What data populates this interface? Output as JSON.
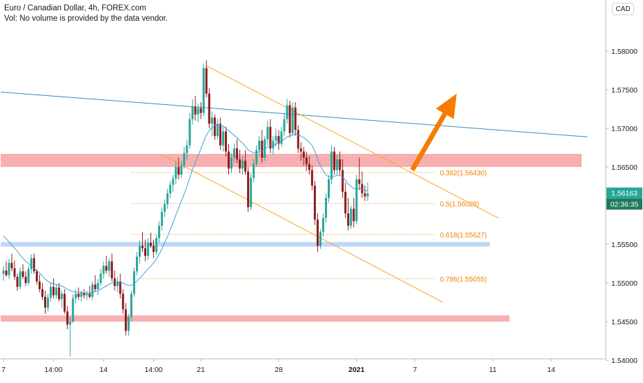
{
  "header": {
    "title": "Euro / Canadian Dollar, 4h, FOREX.com",
    "volume_note": "Vol: No volume is provided by the data vendor."
  },
  "currency_label": "CAD",
  "colors": {
    "up": "#26a69a",
    "down": "#8b1a1a",
    "ma": "#3b9fd8",
    "trendline": "#2f8bc0",
    "channel": "#f5a623",
    "fib": "#f57c00",
    "arrow": "#f57c00",
    "resistance_zone": "#f7a6a9",
    "support_zone": "#b8d4f5",
    "price_badge": "#26a69a",
    "countdown_badge": "#1e7b5a"
  },
  "chart_data": {
    "type": "candlestick",
    "symbol": "EURCAD",
    "timeframe": "4h",
    "ylim": [
      1.5395,
      1.5845
    ],
    "y_ticks": [
      "1.58000",
      "1.57500",
      "1.57000",
      "1.56500",
      "1.56000",
      "1.55500",
      "1.55000",
      "1.54500",
      "1.54000"
    ],
    "x_ticks": [
      {
        "label": "7",
        "bar": 0
      },
      {
        "label": "14:00",
        "bar": 18
      },
      {
        "label": "14",
        "bar": 36
      },
      {
        "label": "14:00",
        "bar": 54
      },
      {
        "label": "21",
        "bar": 71
      },
      {
        "label": "28",
        "bar": 99
      },
      {
        "label": "2021",
        "bar": 127
      },
      {
        "label": "7",
        "bar": 148
      },
      {
        "label": "11",
        "bar": 176
      },
      {
        "label": "14",
        "bar": 197
      }
    ],
    "current_price": "1.56163",
    "countdown": "02:36:35",
    "candles": [
      [
        1.5512,
        1.5522,
        1.5503,
        1.5516
      ],
      [
        1.5516,
        1.5528,
        1.5508,
        1.551
      ],
      [
        1.551,
        1.5531,
        1.5505,
        1.5526
      ],
      [
        1.5526,
        1.5538,
        1.5515,
        1.5519
      ],
      [
        1.5519,
        1.5529,
        1.5504,
        1.5508
      ],
      [
        1.5508,
        1.5512,
        1.549,
        1.5495
      ],
      [
        1.5495,
        1.552,
        1.5492,
        1.5515
      ],
      [
        1.5515,
        1.5524,
        1.5505,
        1.5508
      ],
      [
        1.5508,
        1.5515,
        1.5496,
        1.55
      ],
      [
        1.55,
        1.5522,
        1.5497,
        1.5518
      ],
      [
        1.5518,
        1.5537,
        1.5512,
        1.5532
      ],
      [
        1.5532,
        1.5538,
        1.5512,
        1.5515
      ],
      [
        1.5515,
        1.5518,
        1.5498,
        1.5502
      ],
      [
        1.5502,
        1.5511,
        1.5488,
        1.5492
      ],
      [
        1.5492,
        1.55,
        1.5478,
        1.5482
      ],
      [
        1.5482,
        1.549,
        1.546,
        1.5468
      ],
      [
        1.5468,
        1.5486,
        1.5463,
        1.5481
      ],
      [
        1.5481,
        1.55,
        1.5476,
        1.5495
      ],
      [
        1.5495,
        1.5506,
        1.548,
        1.5484
      ],
      [
        1.5484,
        1.5498,
        1.548,
        1.5494
      ],
      [
        1.5494,
        1.55,
        1.5476,
        1.5479
      ],
      [
        1.5479,
        1.549,
        1.5468,
        1.5486
      ],
      [
        1.5486,
        1.5492,
        1.546,
        1.5463
      ],
      [
        1.5463,
        1.547,
        1.544,
        1.5446
      ],
      [
        1.5446,
        1.5456,
        1.5405,
        1.545
      ],
      [
        1.545,
        1.5485,
        1.5448,
        1.548
      ],
      [
        1.548,
        1.5492,
        1.5474,
        1.5486
      ],
      [
        1.5486,
        1.5494,
        1.5478,
        1.5482
      ],
      [
        1.5482,
        1.549,
        1.5476,
        1.5487
      ],
      [
        1.5487,
        1.5492,
        1.548,
        1.5484
      ],
      [
        1.5484,
        1.549,
        1.5478,
        1.5486
      ],
      [
        1.5486,
        1.5496,
        1.548,
        1.5482
      ],
      [
        1.5482,
        1.5502,
        1.5478,
        1.5498
      ],
      [
        1.5498,
        1.551,
        1.5488,
        1.5492
      ],
      [
        1.5492,
        1.5505,
        1.5484,
        1.55
      ],
      [
        1.55,
        1.5518,
        1.5496,
        1.5512
      ],
      [
        1.5512,
        1.5528,
        1.5505,
        1.5522
      ],
      [
        1.5522,
        1.5535,
        1.5512,
        1.5516
      ],
      [
        1.5516,
        1.5532,
        1.5508,
        1.5528
      ],
      [
        1.5528,
        1.5538,
        1.5502,
        1.5506
      ],
      [
        1.5506,
        1.5516,
        1.549,
        1.5496
      ],
      [
        1.5496,
        1.5508,
        1.5488,
        1.5502
      ],
      [
        1.5502,
        1.5512,
        1.548,
        1.5486
      ],
      [
        1.5486,
        1.5492,
        1.546,
        1.5466
      ],
      [
        1.5466,
        1.5474,
        1.5432,
        1.5438
      ],
      [
        1.5438,
        1.546,
        1.5432,
        1.5456
      ],
      [
        1.5456,
        1.549,
        1.545,
        1.5486
      ],
      [
        1.5486,
        1.552,
        1.5482,
        1.5515
      ],
      [
        1.5515,
        1.554,
        1.551,
        1.5534
      ],
      [
        1.5534,
        1.5555,
        1.5525,
        1.5548
      ],
      [
        1.5548,
        1.5566,
        1.554,
        1.5545
      ],
      [
        1.5545,
        1.5556,
        1.5528,
        1.5535
      ],
      [
        1.5535,
        1.5558,
        1.553,
        1.5552
      ],
      [
        1.5552,
        1.5565,
        1.5545,
        1.5548
      ],
      [
        1.5548,
        1.5556,
        1.5532,
        1.554
      ],
      [
        1.554,
        1.5562,
        1.5536,
        1.5558
      ],
      [
        1.5558,
        1.558,
        1.5552,
        1.5574
      ],
      [
        1.5574,
        1.5598,
        1.5568,
        1.5592
      ],
      [
        1.5592,
        1.5608,
        1.5585,
        1.5602
      ],
      [
        1.5602,
        1.5622,
        1.5596,
        1.5616
      ],
      [
        1.5616,
        1.5632,
        1.561,
        1.5627
      ],
      [
        1.5627,
        1.564,
        1.5618,
        1.5635
      ],
      [
        1.5635,
        1.5658,
        1.5628,
        1.565
      ],
      [
        1.565,
        1.5662,
        1.5634,
        1.564
      ],
      [
        1.564,
        1.5658,
        1.5636,
        1.5652
      ],
      [
        1.5652,
        1.5676,
        1.5648,
        1.5668
      ],
      [
        1.5668,
        1.5685,
        1.566,
        1.5678
      ],
      [
        1.5678,
        1.572,
        1.5674,
        1.5712
      ],
      [
        1.5712,
        1.5738,
        1.5705,
        1.5728
      ],
      [
        1.5728,
        1.5742,
        1.571,
        1.5718
      ],
      [
        1.5718,
        1.5732,
        1.5708,
        1.5726
      ],
      [
        1.5726,
        1.5734,
        1.5712,
        1.572
      ],
      [
        1.572,
        1.5784,
        1.5716,
        1.5778
      ],
      [
        1.5778,
        1.5788,
        1.574,
        1.5745
      ],
      [
        1.5745,
        1.5752,
        1.57,
        1.5706
      ],
      [
        1.5706,
        1.5722,
        1.569,
        1.5714
      ],
      [
        1.5714,
        1.5718,
        1.5685,
        1.569
      ],
      [
        1.569,
        1.5712,
        1.5686,
        1.5706
      ],
      [
        1.5706,
        1.5714,
        1.5672,
        1.5678
      ],
      [
        1.5678,
        1.5702,
        1.567,
        1.5696
      ],
      [
        1.5696,
        1.5702,
        1.5664,
        1.567
      ],
      [
        1.567,
        1.568,
        1.564,
        1.5648
      ],
      [
        1.5648,
        1.5668,
        1.5642,
        1.5662
      ],
      [
        1.5662,
        1.568,
        1.5656,
        1.5674
      ],
      [
        1.5674,
        1.5686,
        1.5655,
        1.566
      ],
      [
        1.566,
        1.5672,
        1.5642,
        1.5648
      ],
      [
        1.5648,
        1.5664,
        1.564,
        1.5658
      ],
      [
        1.5658,
        1.5672,
        1.564,
        1.5644
      ],
      [
        1.5644,
        1.565,
        1.5592,
        1.5598
      ],
      [
        1.5598,
        1.5642,
        1.5594,
        1.5636
      ],
      [
        1.5636,
        1.566,
        1.563,
        1.5654
      ],
      [
        1.5654,
        1.5678,
        1.565,
        1.5672
      ],
      [
        1.5672,
        1.569,
        1.5664,
        1.5684
      ],
      [
        1.5684,
        1.5698,
        1.5656,
        1.5662
      ],
      [
        1.5662,
        1.569,
        1.5658,
        1.5686
      ],
      [
        1.5686,
        1.571,
        1.5678,
        1.5702
      ],
      [
        1.5702,
        1.5712,
        1.5668,
        1.5674
      ],
      [
        1.5674,
        1.569,
        1.5666,
        1.5684
      ],
      [
        1.5684,
        1.57,
        1.5676,
        1.569
      ],
      [
        1.569,
        1.5698,
        1.5672,
        1.568
      ],
      [
        1.568,
        1.5702,
        1.5676,
        1.5696
      ],
      [
        1.5696,
        1.572,
        1.569,
        1.5712
      ],
      [
        1.5712,
        1.5738,
        1.5706,
        1.573
      ],
      [
        1.573,
        1.5736,
        1.5688,
        1.5694
      ],
      [
        1.5694,
        1.5734,
        1.569,
        1.5727
      ],
      [
        1.5727,
        1.5734,
        1.569,
        1.5698
      ],
      [
        1.5698,
        1.5704,
        1.5668,
        1.5674
      ],
      [
        1.5674,
        1.5682,
        1.5658,
        1.567
      ],
      [
        1.567,
        1.5676,
        1.5652,
        1.5662
      ],
      [
        1.5662,
        1.567,
        1.5645,
        1.5654
      ],
      [
        1.5654,
        1.5664,
        1.564,
        1.5646
      ],
      [
        1.5646,
        1.5652,
        1.562,
        1.5626
      ],
      [
        1.5626,
        1.5632,
        1.5575,
        1.5582
      ],
      [
        1.5582,
        1.559,
        1.554,
        1.5548
      ],
      [
        1.5548,
        1.557,
        1.5544,
        1.5566
      ],
      [
        1.5566,
        1.559,
        1.556,
        1.5584
      ],
      [
        1.5584,
        1.5616,
        1.5578,
        1.561
      ],
      [
        1.561,
        1.564,
        1.5604,
        1.5634
      ],
      [
        1.5634,
        1.5678,
        1.5628,
        1.567
      ],
      [
        1.567,
        1.5676,
        1.564,
        1.5646
      ],
      [
        1.5646,
        1.5666,
        1.564,
        1.566
      ],
      [
        1.566,
        1.567,
        1.564,
        1.5646
      ],
      [
        1.5646,
        1.566,
        1.561,
        1.5618
      ],
      [
        1.5618,
        1.563,
        1.5584,
        1.559
      ],
      [
        1.559,
        1.561,
        1.5568,
        1.5574
      ],
      [
        1.5574,
        1.56,
        1.557,
        1.5596
      ],
      [
        1.5596,
        1.561,
        1.5572,
        1.558
      ],
      [
        1.558,
        1.564,
        1.5576,
        1.5634
      ],
      [
        1.5634,
        1.5662,
        1.562,
        1.5628
      ],
      [
        1.5628,
        1.5644,
        1.561,
        1.5616
      ],
      [
        1.5616,
        1.5626,
        1.5606,
        1.5612
      ],
      [
        1.5612,
        1.563,
        1.5606,
        1.5616
      ]
    ],
    "moving_average": [
      1.5561,
      1.5557,
      1.5553,
      1.5549,
      1.5545,
      1.5541,
      1.5536,
      1.5532,
      1.5528,
      1.5525,
      1.5522,
      1.5519,
      1.5516,
      1.5513,
      1.5509,
      1.5505,
      1.5502,
      1.55,
      1.5499,
      1.5498,
      1.5497,
      1.5496,
      1.5494,
      1.5492,
      1.549,
      1.5489,
      1.5488,
      1.5488,
      1.5488,
      1.5487,
      1.5487,
      1.5487,
      1.5488,
      1.5489,
      1.549,
      1.5492,
      1.5494,
      1.5496,
      1.5498,
      1.55,
      1.5501,
      1.5501,
      1.5501,
      1.55,
      1.5498,
      1.5497,
      1.5497,
      1.5499,
      1.5502,
      1.5506,
      1.551,
      1.5514,
      1.5518,
      1.5522,
      1.5526,
      1.5531,
      1.5537,
      1.5544,
      1.5552,
      1.556,
      1.5569,
      1.5578,
      1.5588,
      1.5597,
      1.5606,
      1.5615,
      1.5625,
      1.5636,
      1.5647,
      1.5656,
      1.5665,
      1.5673,
      1.5683,
      1.5691,
      1.5697,
      1.5701,
      1.5704,
      1.5705,
      1.5704,
      1.5703,
      1.57,
      1.5697,
      1.5694,
      1.5691,
      1.5688,
      1.5684,
      1.5681,
      1.5677,
      1.5672,
      1.567,
      1.5668,
      1.5668,
      1.567,
      1.5671,
      1.5673,
      1.5676,
      1.5677,
      1.5678,
      1.568,
      1.5681,
      1.5683,
      1.5686,
      1.5689,
      1.569,
      1.5692,
      1.5693,
      1.5692,
      1.569,
      1.5688,
      1.5685,
      1.5682,
      1.5678,
      1.567,
      1.566,
      1.5652,
      1.5645,
      1.564,
      1.5637,
      1.5638,
      1.5638,
      1.5639,
      1.5639,
      1.5637,
      1.5633,
      1.5628,
      1.5625,
      1.5622,
      1.5622,
      1.5622,
      1.5621,
      1.562,
      1.5619
    ],
    "zones": [
      {
        "kind": "resistance",
        "y_top": 1.5667,
        "y_bottom": 1.565,
        "x_start_bar": -1,
        "x_end_bar": 208
      },
      {
        "kind": "support",
        "y_top": 1.5553,
        "y_bottom": 1.5547,
        "x_start_bar": -1,
        "x_end_bar": 175
      },
      {
        "kind": "resistance",
        "y_top": 1.5458,
        "y_bottom": 1.545,
        "x_start_bar": -1,
        "x_end_bar": 182
      }
    ],
    "trendline": {
      "start": {
        "bar": -1,
        "price": 1.5747
      },
      "end": {
        "bar": 210,
        "price": 1.5689
      }
    },
    "channel": {
      "upper": {
        "start": {
          "bar": 73,
          "price": 1.5781
        },
        "end": {
          "bar": 178,
          "price": 1.5584
        }
      },
      "lower": {
        "start": {
          "bar": 57,
          "price": 1.5666
        },
        "end": {
          "bar": 158,
          "price": 1.5475
        }
      }
    },
    "fibonacci": {
      "start_bar": 46,
      "end_bar": 155,
      "levels": [
        {
          "label": "0.382(1.56430)",
          "price": 1.5643,
          "label_bar": 157
        },
        {
          "label": "0.5(1.56028)",
          "price": 1.56028,
          "label_bar": 157
        },
        {
          "label": "0.618(1.55627)",
          "price": 1.55627,
          "label_bar": 157
        },
        {
          "label": "0.786(1.55055)",
          "price": 1.55055,
          "label_bar": 157
        }
      ]
    },
    "projection_arrow": {
      "start": {
        "bar": 147,
        "price": 1.5646
      },
      "end": {
        "bar": 163,
        "price": 1.5745
      }
    }
  }
}
